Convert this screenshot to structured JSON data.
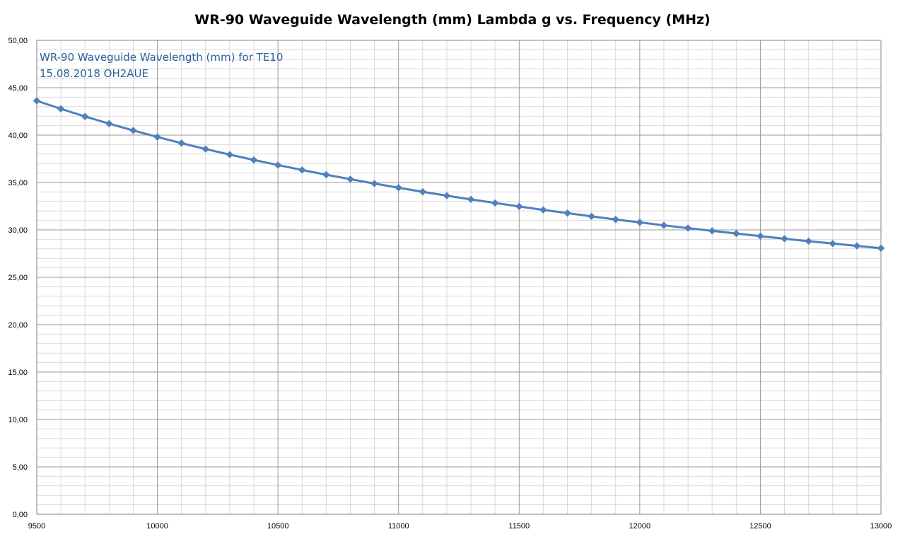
{
  "chart_data": {
    "type": "line",
    "title": "WR-90 Waveguide Wavelength (mm) Lambda g vs. Frequency (MHz)",
    "annotation_lines": [
      "WR-90 Waveguide Wavelength (mm) for TE10",
      "15.08.2018 OH2AUE"
    ],
    "xlabel": "",
    "ylabel": "",
    "xlim": [
      9500,
      13000
    ],
    "ylim": [
      0,
      50
    ],
    "x_ticks": [
      9500,
      10000,
      10500,
      11000,
      11500,
      12000,
      12500,
      13000
    ],
    "x_tick_labels": [
      "9500",
      "10000",
      "10500",
      "11000",
      "11500",
      "12000",
      "12500",
      "13000"
    ],
    "y_ticks": [
      0,
      5,
      10,
      15,
      20,
      25,
      30,
      35,
      40,
      45,
      50
    ],
    "y_tick_labels": [
      "0,00",
      "5,00",
      "10,00",
      "15,00",
      "20,00",
      "25,00",
      "30,00",
      "35,00",
      "40,00",
      "45,00",
      "50,00"
    ],
    "x_minor_step": 100,
    "y_minor_step": 1,
    "grid": true,
    "legend": "none",
    "series": [
      {
        "color": "#4f81bd",
        "marker": "diamond",
        "x": [
          9500,
          9600,
          9700,
          9800,
          9900,
          10000,
          10100,
          10200,
          10300,
          10400,
          10500,
          10600,
          10700,
          10800,
          10900,
          11000,
          11100,
          11200,
          11300,
          11400,
          11500,
          11600,
          11700,
          11800,
          11900,
          12000,
          12100,
          12200,
          12300,
          12400,
          12500,
          12600,
          12700,
          12800,
          12900,
          13000
        ],
        "values": [
          43.62,
          42.77,
          41.96,
          41.21,
          40.49,
          39.8,
          39.15,
          38.53,
          37.94,
          37.38,
          36.84,
          36.32,
          35.82,
          35.35,
          34.89,
          34.45,
          34.02,
          33.61,
          33.22,
          32.84,
          32.47,
          32.11,
          31.77,
          31.43,
          31.1,
          30.79,
          30.48,
          30.19,
          29.9,
          29.62,
          29.34,
          29.07,
          28.81,
          28.56,
          28.31,
          28.07
        ]
      }
    ]
  }
}
